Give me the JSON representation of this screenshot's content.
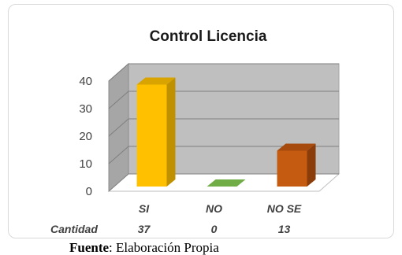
{
  "chart_data": {
    "type": "bar",
    "title": "Control Licencia",
    "categories": [
      "SI",
      "NO",
      "NO SE"
    ],
    "series": [
      {
        "name": "Cantidad",
        "values": [
          37,
          0,
          13
        ]
      }
    ],
    "table_row_label": "Cantidad",
    "ylim": [
      0,
      40
    ],
    "yticks": [
      0,
      10,
      20,
      30,
      40
    ],
    "grid": true,
    "style": "3d",
    "bar_colors": [
      "#ffc000",
      "#70ad47",
      "#c55a11"
    ],
    "bar_top_colors": [
      "#d9a300",
      "#5e9239",
      "#a64a0d"
    ],
    "bar_side_colors": [
      "#bf9000",
      "#4f7a30",
      "#8a3d0b"
    ],
    "wall_color": "#bfbfbf"
  },
  "caption": {
    "label": "Fuente",
    "text": ": Elaboración Propia"
  }
}
